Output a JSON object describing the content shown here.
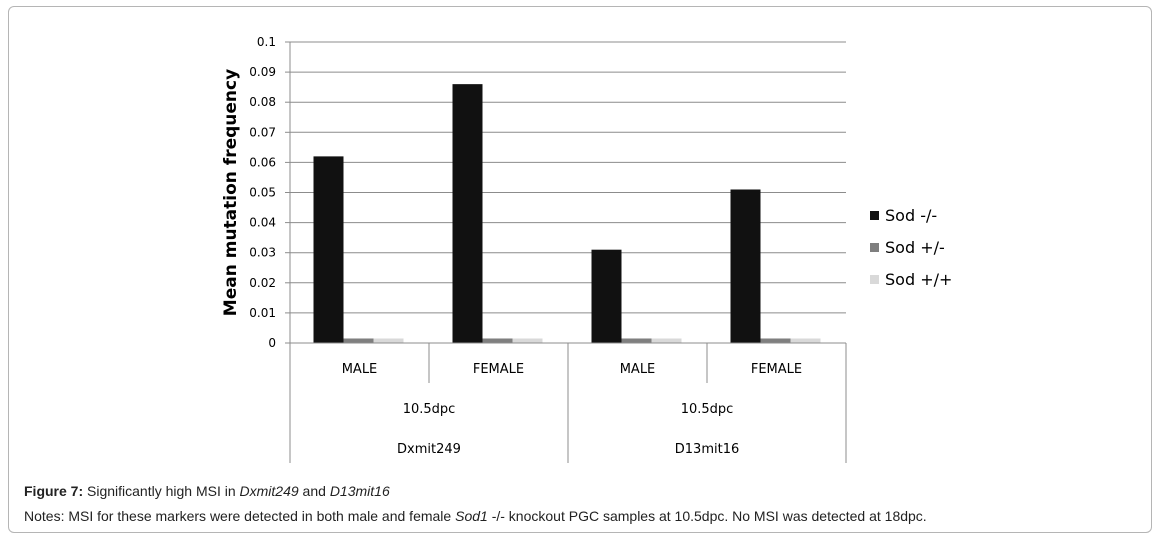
{
  "chart_data": {
    "type": "bar",
    "title": "",
    "ylabel": "Mean mutation frequency",
    "ylim": [
      0,
      0.1
    ],
    "yticks": [
      "0",
      "0.01",
      "0.02",
      "0.03",
      "0.04",
      "0.05",
      "0.06",
      "0.07",
      "0.08",
      "0.09",
      "0.1"
    ],
    "grid": true,
    "legend_position": "right",
    "categories": [
      "MALE",
      "FEMALE",
      "MALE",
      "FEMALE"
    ],
    "category_groups": [
      {
        "stage": "10.5dpc",
        "marker": "Dxmit249",
        "categories": [
          "MALE",
          "FEMALE"
        ]
      },
      {
        "stage": "10.5dpc",
        "marker": "D13mit16",
        "categories": [
          "MALE",
          "FEMALE"
        ]
      }
    ],
    "series": [
      {
        "name": "Sod -/-",
        "color": "#111111",
        "values": [
          0.062,
          0.086,
          0.031,
          0.051
        ]
      },
      {
        "name": "Sod +/-",
        "color": "#7f7f7f",
        "values": [
          0.0015,
          0.0015,
          0.0015,
          0.0015
        ]
      },
      {
        "name": "Sod +/+",
        "color": "#d9d9d9",
        "values": [
          0.0015,
          0.0015,
          0.0015,
          0.0015
        ]
      }
    ]
  },
  "caption": {
    "label": "Figure 7:",
    "text_1": " Significantly high MSI in ",
    "marker_1": "Dxmit249",
    "text_2": " and ",
    "marker_2": "D13mit16"
  },
  "notes": {
    "text_1": "Notes: MSI for these markers were detected in both male and female ",
    "gene": "Sod1",
    "text_2": " -/- knockout PGC samples at 10.5dpc. No MSI was detected at 18dpc."
  }
}
